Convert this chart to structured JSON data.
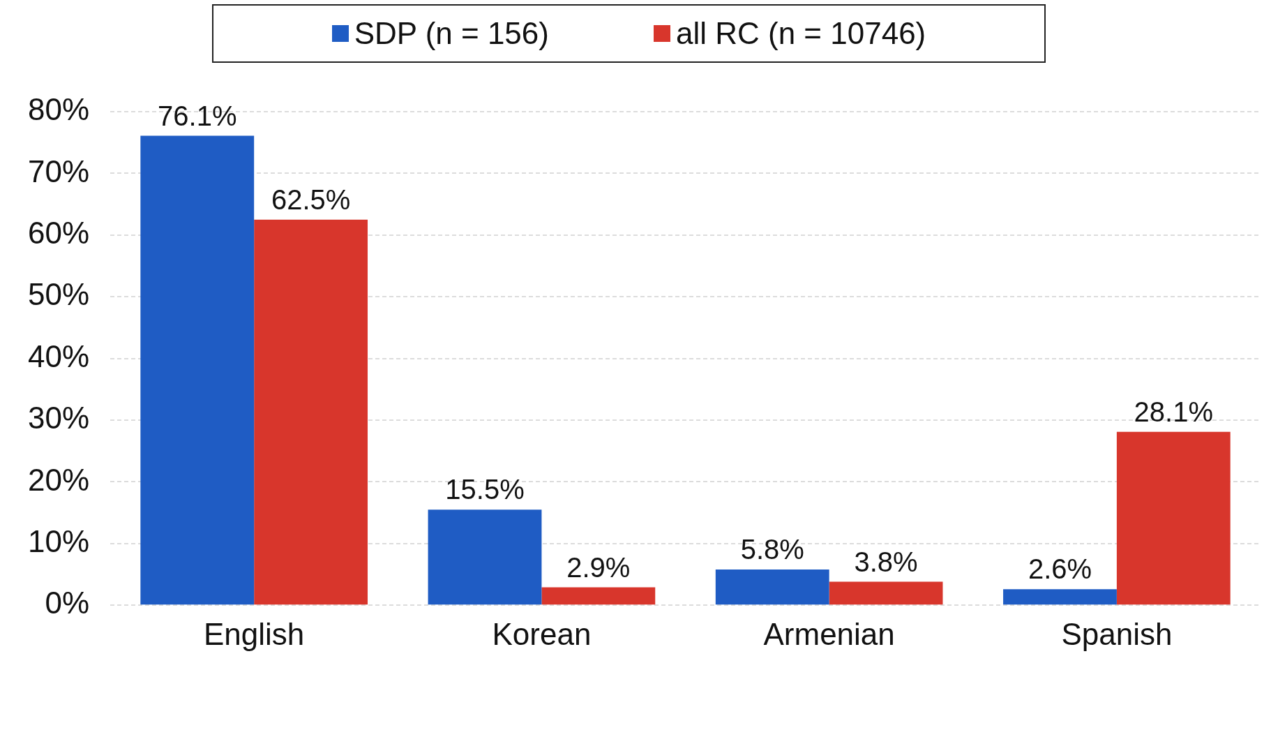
{
  "chart_data": {
    "type": "bar",
    "categories": [
      "English",
      "Korean",
      "Armenian",
      "Spanish"
    ],
    "series": [
      {
        "name": "SDP (n = 156)",
        "color": "#1f5cc4",
        "values": [
          76.1,
          15.5,
          5.8,
          2.6
        ],
        "value_labels": [
          "76.1%",
          "15.5%",
          "5.8%",
          "2.6%"
        ]
      },
      {
        "name": "all RC (n = 10746)",
        "color": "#d8362c",
        "values": [
          62.5,
          2.9,
          3.8,
          28.1
        ],
        "value_labels": [
          "62.5%",
          "2.9%",
          "3.8%",
          "28.1%"
        ]
      }
    ],
    "ylim": [
      0,
      80
    ],
    "yticks": [
      {
        "value": 0,
        "label": "0%"
      },
      {
        "value": 10,
        "label": "10%"
      },
      {
        "value": 20,
        "label": "20%"
      },
      {
        "value": 30,
        "label": "30%"
      },
      {
        "value": 40,
        "label": "40%"
      },
      {
        "value": 50,
        "label": "50%"
      },
      {
        "value": 60,
        "label": "60%"
      },
      {
        "value": 70,
        "label": "70%"
      },
      {
        "value": 80,
        "label": "80%"
      }
    ],
    "grid": "y",
    "legend": "top"
  }
}
